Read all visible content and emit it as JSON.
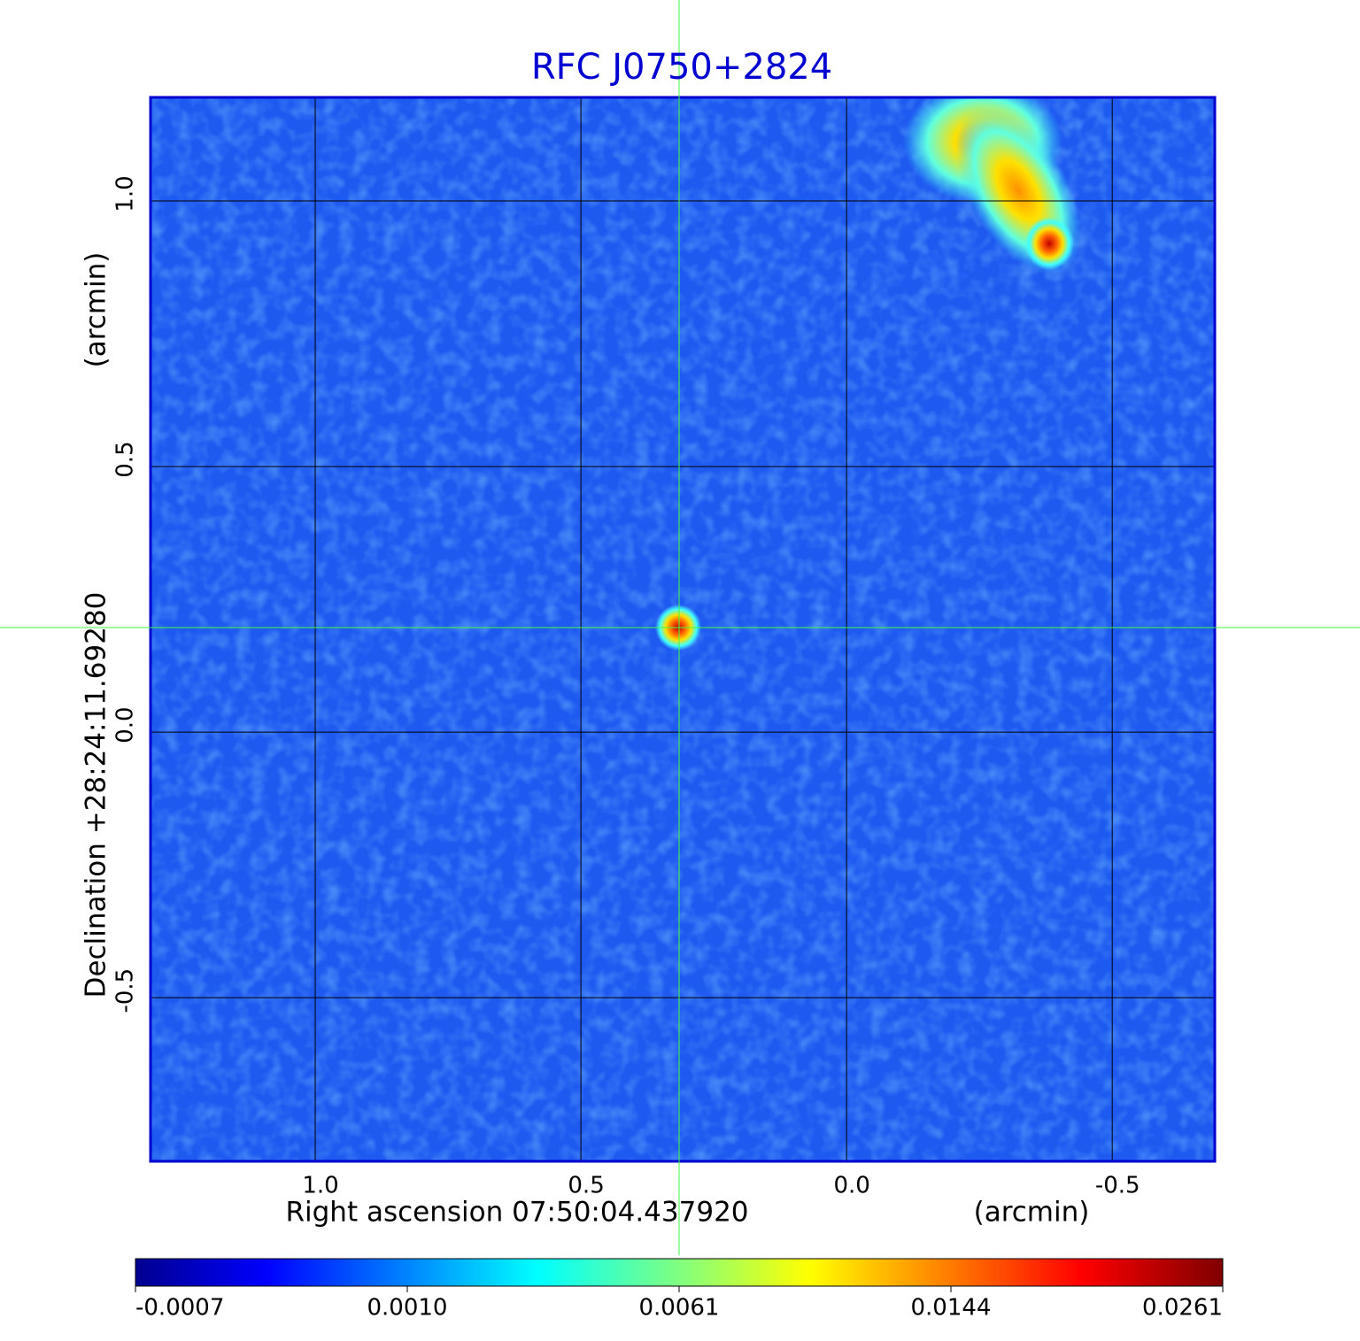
{
  "chart_data": {
    "type": "image",
    "title": "RFC J0750+2824",
    "xlabel": "Right ascension  07:50:04.437920",
    "xunit": "(arcmin)",
    "ylabel": "Declination  +28:24:11.69280",
    "yunit": "(arcmin)",
    "xlim": [
      1.31,
      -0.693
    ],
    "ylim": [
      -0.808,
      1.195
    ],
    "xticks": [
      {
        "value": 1,
        "label": "1.0"
      },
      0.5,
      {
        "value": 0,
        "label": "0.0"
      },
      -0.5
    ],
    "yticks": [
      {
        "value": -0.5,
        "label": "-0.5"
      },
      {
        "value": 0,
        "label": "0.0"
      },
      0.5,
      {
        "value": 1,
        "label": "1.0"
      }
    ],
    "grid": true,
    "colorbar": {
      "colormap": "jet",
      "ticks": [
        -0.0007,
        {
          "value": 0.001,
          "label": "0.0010"
        },
        0.0061,
        0.0144,
        0.0261
      ]
    }
  }
}
